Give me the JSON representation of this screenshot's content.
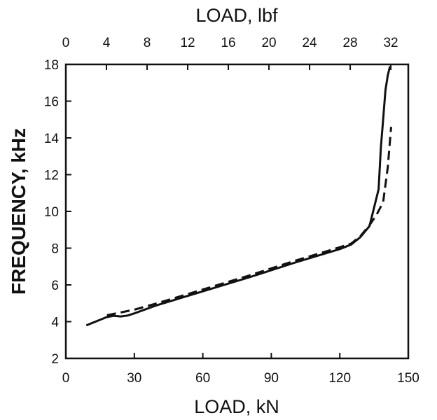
{
  "chart_data": {
    "type": "line",
    "xlabel": "LOAD, kN",
    "x2label": "LOAD, lbf",
    "ylabel": "FREQUENCY, kHz",
    "xlim": [
      0,
      150
    ],
    "x2lim": [
      0,
      33.72
    ],
    "ylim": [
      2,
      18
    ],
    "xticks": [
      0,
      30,
      60,
      90,
      120,
      150
    ],
    "x2ticks": [
      0,
      4,
      8,
      12,
      16,
      20,
      24,
      28,
      32
    ],
    "yticks": [
      2,
      4,
      6,
      8,
      10,
      12,
      14,
      16,
      18
    ],
    "grid": false,
    "series": [
      {
        "style": "solid",
        "x": [
          9,
          12,
          15,
          18,
          21,
          24,
          27,
          30,
          40,
          60,
          80,
          100,
          120,
          125,
          129,
          133,
          137,
          138,
          139,
          140,
          141,
          142
        ],
        "y": [
          3.8,
          3.95,
          4.1,
          4.25,
          4.32,
          4.28,
          4.33,
          4.45,
          4.9,
          5.65,
          6.4,
          7.2,
          7.95,
          8.2,
          8.6,
          9.2,
          11.2,
          13.5,
          15.0,
          16.6,
          17.4,
          17.9
        ]
      },
      {
        "style": "dashed",
        "x": [
          18,
          22,
          30,
          40,
          60,
          80,
          100,
          120,
          125,
          129,
          133,
          136,
          139,
          141,
          142.5
        ],
        "y": [
          4.35,
          4.45,
          4.65,
          5.0,
          5.75,
          6.5,
          7.3,
          8.05,
          8.25,
          8.65,
          9.25,
          9.8,
          10.5,
          12.4,
          14.6
        ]
      }
    ]
  }
}
